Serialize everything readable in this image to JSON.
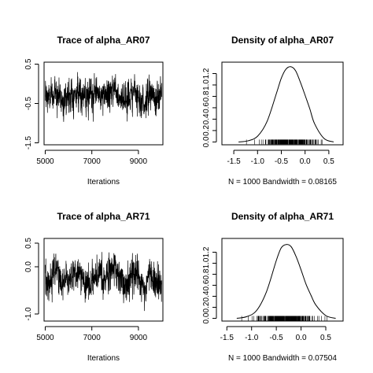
{
  "chart_data": [
    {
      "type": "line",
      "kind": "trace",
      "title": "Trace of alpha_AR07",
      "xlabel": "Iterations",
      "ylabel": "",
      "xlim": [
        4950,
        10050
      ],
      "ylim": [
        -1.55,
        0.55
      ],
      "xticks": [
        5000,
        7000,
        9000
      ],
      "xtick_labels": [
        "5000",
        "7000",
        "9000"
      ],
      "yticks": [
        -1.5,
        -0.5,
        0.5
      ],
      "ytick_labels": [
        "-1.5",
        "-0.5",
        "0.5"
      ],
      "series": [
        {
          "x": [
            5000,
            5250,
            5500,
            5750,
            6000,
            6250,
            6500,
            6750,
            7000,
            7250,
            7500,
            7750,
            8000,
            8250,
            8500,
            8750,
            9000,
            9250,
            9500,
            9750,
            10000
          ],
          "y": [
            -0.3,
            -0.5,
            0.0,
            -0.6,
            -0.2,
            -0.4,
            0.1,
            -0.7,
            -0.3,
            -0.1,
            -0.5,
            -0.2,
            0.2,
            -0.4,
            -0.6,
            -0.1,
            -0.3,
            -0.8,
            -0.2,
            -0.5,
            -0.3
          ]
        }
      ],
      "mean": -0.3,
      "sd": 0.3,
      "n": 1000,
      "grid": false
    },
    {
      "type": "area",
      "kind": "density",
      "title": "Density of alpha_AR07",
      "xlabel": "N = 1000   Bandwidth = 0.08165",
      "ylabel": "",
      "xlim": [
        -1.75,
        0.8
      ],
      "ylim": [
        -0.05,
        1.4
      ],
      "xticks": [
        -1.5,
        -1.0,
        -0.5,
        0.0,
        0.5
      ],
      "xtick_labels": [
        "-1.5",
        "-1.0",
        "-0.5",
        "0.0",
        "0.5"
      ],
      "yticks": [
        0.0,
        0.2,
        0.4,
        0.6,
        0.8,
        1.0,
        1.2
      ],
      "ytick_labels": [
        "0.0",
        "0.2",
        "0.4",
        "0.6",
        "0.8",
        "1.0",
        "1.2"
      ],
      "series": [
        {
          "x": [
            -1.4,
            -1.2,
            -1.0,
            -0.8,
            -0.6,
            -0.5,
            -0.4,
            -0.3,
            -0.2,
            -0.1,
            0.0,
            0.1,
            0.2,
            0.4,
            0.6
          ],
          "y": [
            0.0,
            0.02,
            0.1,
            0.36,
            0.86,
            1.12,
            1.28,
            1.32,
            1.25,
            1.05,
            0.82,
            0.58,
            0.32,
            0.06,
            0.0
          ]
        }
      ],
      "rug_range": [
        -1.3,
        0.5
      ],
      "grid": false
    },
    {
      "type": "line",
      "kind": "trace",
      "title": "Trace of alpha_AR71",
      "xlabel": "Iterations",
      "ylabel": "",
      "xlim": [
        4950,
        10050
      ],
      "ylim": [
        -1.15,
        0.6
      ],
      "xticks": [
        5000,
        7000,
        9000
      ],
      "xtick_labels": [
        "5000",
        "7000",
        "9000"
      ],
      "yticks": [
        -1.0,
        0.0,
        0.5
      ],
      "ytick_labels": [
        "-1.0",
        "0.0",
        "0.5"
      ],
      "series": [
        {
          "x": [
            5000,
            5250,
            5500,
            5750,
            6000,
            6250,
            6500,
            6750,
            7000,
            7250,
            7500,
            7750,
            8000,
            8250,
            8500,
            8750,
            9000,
            9250,
            9500,
            9750,
            10000
          ],
          "y": [
            -0.2,
            -0.4,
            0.1,
            -0.5,
            -0.1,
            -0.3,
            0.2,
            -0.6,
            -0.2,
            0.0,
            -0.4,
            -0.1,
            0.3,
            -0.3,
            -0.5,
            0.0,
            -0.2,
            -0.7,
            -0.1,
            -0.4,
            -0.2
          ]
        }
      ],
      "mean": -0.25,
      "sd": 0.27,
      "n": 1000,
      "grid": false
    },
    {
      "type": "area",
      "kind": "density",
      "title": "Density of alpha_AR71",
      "xlabel": "N = 1000   Bandwidth = 0.07504",
      "ylabel": "",
      "xlim": [
        -1.6,
        0.85
      ],
      "ylim": [
        -0.05,
        1.45
      ],
      "xticks": [
        -1.5,
        -1.0,
        -0.5,
        0.0,
        0.5
      ],
      "xtick_labels": [
        "-1.5",
        "-1.0",
        "-0.5",
        "0.0",
        "0.5"
      ],
      "yticks": [
        0.0,
        0.2,
        0.4,
        0.6,
        0.8,
        1.0,
        1.2
      ],
      "ytick_labels": [
        "0.0",
        "0.2",
        "0.4",
        "0.6",
        "0.8",
        "1.0",
        "1.2"
      ],
      "series": [
        {
          "x": [
            -1.3,
            -1.1,
            -0.9,
            -0.7,
            -0.5,
            -0.4,
            -0.3,
            -0.2,
            -0.1,
            0.0,
            0.1,
            0.2,
            0.3,
            0.5,
            0.7
          ],
          "y": [
            0.0,
            0.03,
            0.14,
            0.48,
            1.05,
            1.28,
            1.34,
            1.3,
            1.12,
            0.88,
            0.62,
            0.42,
            0.24,
            0.05,
            0.0
          ]
        }
      ],
      "rug_range": [
        -1.2,
        0.6
      ],
      "grid": false
    }
  ]
}
